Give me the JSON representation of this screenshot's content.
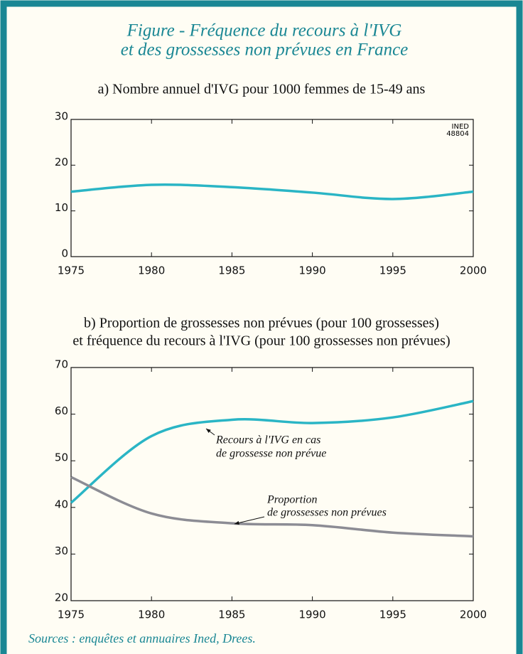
{
  "title": [
    "Figure - Fréquence du recours à l'IVG",
    "et des grossesses non prévues en France"
  ],
  "source": "Sources : enquêtes et annuaires Ined, Drees.",
  "chart_data": [
    {
      "type": "line",
      "title": [
        "a) Nombre annuel d'IVG pour 1000 femmes de 15-49 ans"
      ],
      "annotation": [
        "INED",
        "48804"
      ],
      "x": [
        1975,
        1980,
        1985,
        1990,
        1995,
        2000
      ],
      "xlim": [
        1975,
        2000
      ],
      "xticks": [
        1975,
        1980,
        1985,
        1990,
        1995,
        2000
      ],
      "ylim": [
        0,
        30
      ],
      "yticks": [
        0,
        10,
        20,
        30
      ],
      "series": [
        {
          "color": "#2ab5c5",
          "values": [
            14.2,
            15.7,
            15.2,
            14.0,
            12.6,
            14.2
          ]
        }
      ]
    },
    {
      "type": "line",
      "title": [
        "b) Proportion de grossesses non prévues (pour 100 grossesses)",
        "et fréquence du recours à l'IVG (pour 100 grossesses non prévues)"
      ],
      "x": [
        1975,
        1980,
        1985,
        1990,
        1995,
        2000
      ],
      "xlim": [
        1975,
        2000
      ],
      "xticks": [
        1975,
        1980,
        1985,
        1990,
        1995,
        2000
      ],
      "ylim": [
        20,
        70
      ],
      "yticks": [
        20,
        30,
        40,
        50,
        60,
        70
      ],
      "series": [
        {
          "name": [
            "Recours à l'IVG en cas",
            "de grossesse non prévue"
          ],
          "color": "#2ab5c5",
          "values": [
            41.0,
            55.3,
            58.8,
            58.1,
            59.3,
            62.8
          ]
        },
        {
          "name": [
            "Proportion",
            "de grossesses non prévues"
          ],
          "color": "#8c8c94",
          "values": [
            46.5,
            38.7,
            36.6,
            36.2,
            34.6,
            33.8
          ]
        }
      ]
    }
  ]
}
